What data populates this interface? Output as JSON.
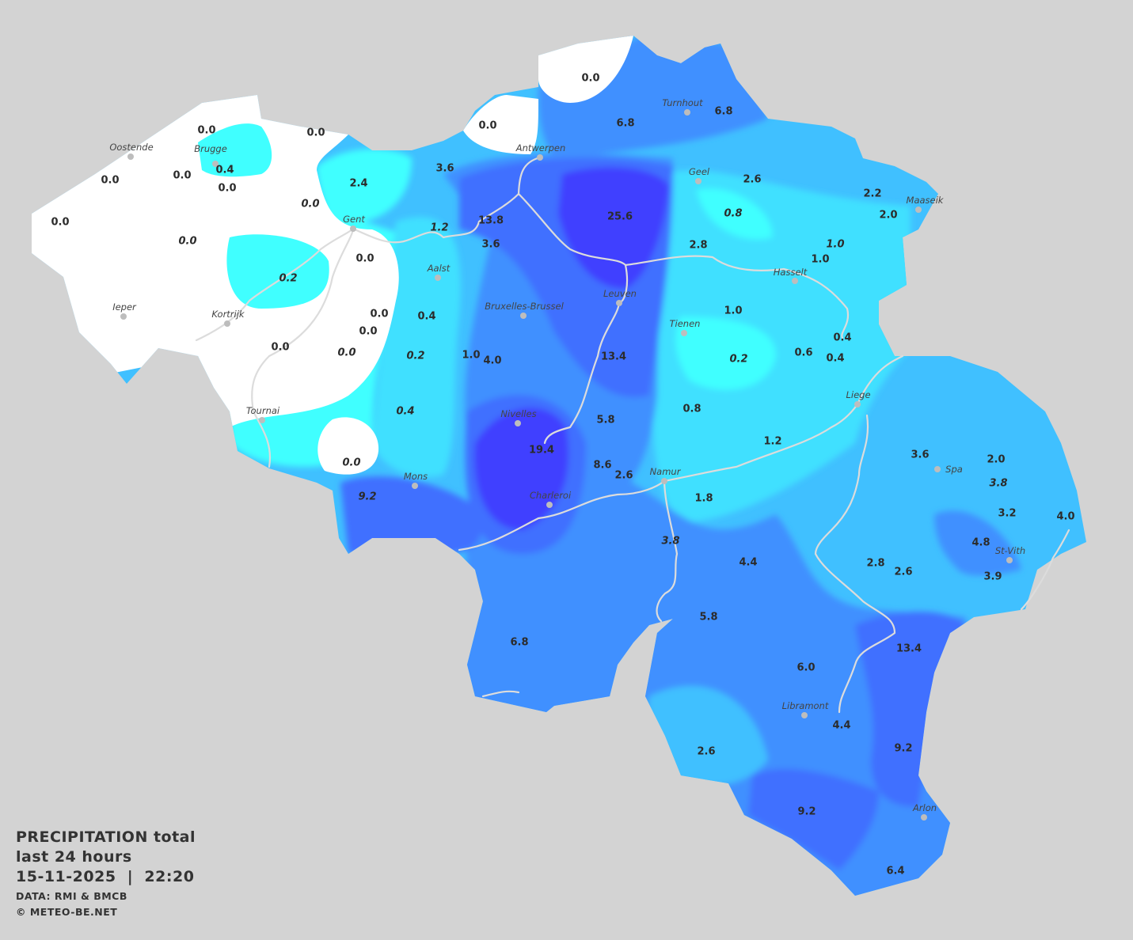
{
  "title": {
    "line1": "PRECIPITATION total",
    "line2": "last 24 hours",
    "line3": "15-11-2025  |  22:20",
    "source": "DATA: RMI & BMCB",
    "copyright": "© METEO-BE.NET"
  },
  "colors": {
    "background": "#d3d3d3",
    "zero": "#ffffff",
    "very_light": "#40ffff",
    "light": "#40e0ff",
    "moderate": "#40c0ff",
    "medium": "#4090ff",
    "heavy": "#4070ff",
    "very_heavy": "#4040ff",
    "rivers": "#dcdcdc"
  },
  "cities": [
    {
      "name": "Oostende"
    },
    {
      "name": "Brugge"
    },
    {
      "name": "Gent"
    },
    {
      "name": "Antwerpen"
    },
    {
      "name": "Turnhout"
    },
    {
      "name": "Geel"
    },
    {
      "name": "Maaseik"
    },
    {
      "name": "Hasselt"
    },
    {
      "name": "Aalst"
    },
    {
      "name": "Bruxelles-Brussel"
    },
    {
      "name": "Leuven"
    },
    {
      "name": "Tienen"
    },
    {
      "name": "Ieper"
    },
    {
      "name": "Kortrijk"
    },
    {
      "name": "Tournai"
    },
    {
      "name": "Liege"
    },
    {
      "name": "Nivelles"
    },
    {
      "name": "Mons"
    },
    {
      "name": "Namur"
    },
    {
      "name": "Charleroi"
    },
    {
      "name": "Spa"
    },
    {
      "name": "St-Vith"
    },
    {
      "name": "Libramont"
    },
    {
      "name": "Arlon"
    }
  ],
  "values": [
    {
      "v": "0.0"
    },
    {
      "v": "0.0"
    },
    {
      "v": "0.0"
    },
    {
      "v": "0.0"
    },
    {
      "v": "6.8"
    },
    {
      "v": "6.8"
    },
    {
      "v": "0.4"
    },
    {
      "v": "0.0"
    },
    {
      "v": "0.0"
    },
    {
      "v": "0.0"
    },
    {
      "v": "3.6"
    },
    {
      "v": "2.4"
    },
    {
      "v": "2.6"
    },
    {
      "v": "2.2"
    },
    {
      "v": "2.0"
    },
    {
      "v": "0.0",
      "italic": true
    },
    {
      "v": "0.0"
    },
    {
      "v": "0.0",
      "italic": true
    },
    {
      "v": "13.8"
    },
    {
      "v": "25.6"
    },
    {
      "v": "0.8",
      "italic": true
    },
    {
      "v": "1.2",
      "italic": true
    },
    {
      "v": "3.6"
    },
    {
      "v": "2.8"
    },
    {
      "v": "1.0",
      "italic": true
    },
    {
      "v": "0.0"
    },
    {
      "v": "1.0"
    },
    {
      "v": "0.2",
      "italic": true
    },
    {
      "v": "1.0"
    },
    {
      "v": "0.0"
    },
    {
      "v": "0.4"
    },
    {
      "v": "0.0"
    },
    {
      "v": "0.4"
    },
    {
      "v": "0.0"
    },
    {
      "v": "0.0",
      "italic": true
    },
    {
      "v": "0.2",
      "italic": true
    },
    {
      "v": "1.0"
    },
    {
      "v": "4.0"
    },
    {
      "v": "13.4"
    },
    {
      "v": "0.2",
      "italic": true
    },
    {
      "v": "0.6"
    },
    {
      "v": "0.4"
    },
    {
      "v": "0.4",
      "italic": true
    },
    {
      "v": "0.8"
    },
    {
      "v": "5.8"
    },
    {
      "v": "1.2"
    },
    {
      "v": "19.4"
    },
    {
      "v": "0.0",
      "italic": true
    },
    {
      "v": "8.6"
    },
    {
      "v": "2.6"
    },
    {
      "v": "3.6"
    },
    {
      "v": "2.0"
    },
    {
      "v": "3.8",
      "italic": true
    },
    {
      "v": "9.2",
      "italic": true
    },
    {
      "v": "1.8"
    },
    {
      "v": "3.2"
    },
    {
      "v": "4.0"
    },
    {
      "v": "3.8",
      "italic": true
    },
    {
      "v": "4.8"
    },
    {
      "v": "4.4"
    },
    {
      "v": "2.8"
    },
    {
      "v": "2.6"
    },
    {
      "v": "3.9"
    },
    {
      "v": "5.8"
    },
    {
      "v": "6.8"
    },
    {
      "v": "13.4"
    },
    {
      "v": "6.0"
    },
    {
      "v": "4.4"
    },
    {
      "v": "2.6"
    },
    {
      "v": "9.2"
    },
    {
      "v": "9.2"
    },
    {
      "v": "6.4"
    }
  ]
}
